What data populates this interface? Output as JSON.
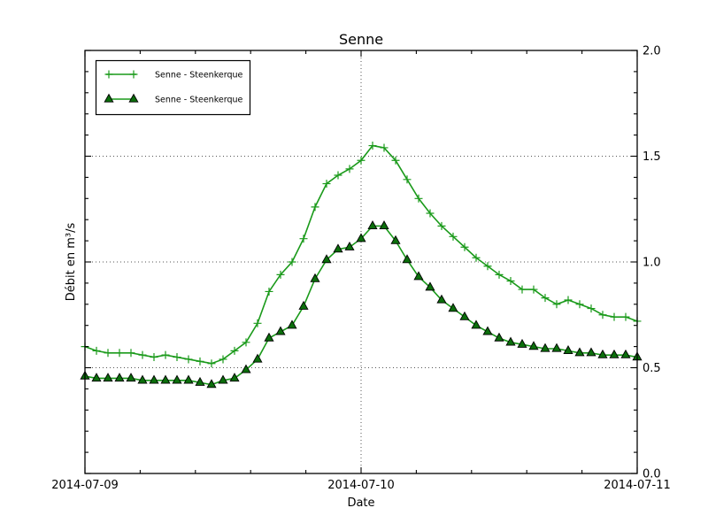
{
  "figure": {
    "background_color": "#ffffff",
    "frame_color": "#000000"
  },
  "chart_data": {
    "type": "line",
    "title": "Senne",
    "xlabel": "Date",
    "ylabel": "Débit en m³/s",
    "x_tick_labels": [
      "2014-07-09",
      "2014-07-10",
      "2014-07-11"
    ],
    "y_tick_labels": [
      "0.0",
      "0.5",
      "1.0",
      "1.5",
      "2.0"
    ],
    "y_ticks": [
      0.0,
      0.5,
      1.0,
      1.5,
      2.0
    ],
    "ylim": [
      0.0,
      2.0
    ],
    "x_hours_range": [
      0,
      48
    ],
    "x_step_hours": 1,
    "grid": {
      "style": "dotted",
      "y_values": [
        0.5,
        1.0,
        1.5
      ],
      "x_hours": [
        24
      ]
    },
    "legend": {
      "position": "upper-left",
      "entries": [
        "Senne - Steenkerque",
        "Senne - Steenkerque"
      ]
    },
    "series": [
      {
        "name": "Senne - Steenkerque",
        "marker": "plus",
        "color": "#1a9a1a",
        "values": [
          0.6,
          0.58,
          0.57,
          0.57,
          0.57,
          0.56,
          0.55,
          0.56,
          0.55,
          0.54,
          0.53,
          0.52,
          0.54,
          0.58,
          0.62,
          0.71,
          0.86,
          0.94,
          1.0,
          1.11,
          1.26,
          1.37,
          1.41,
          1.44,
          1.48,
          1.55,
          1.54,
          1.48,
          1.39,
          1.3,
          1.23,
          1.17,
          1.12,
          1.07,
          1.02,
          0.98,
          0.94,
          0.91,
          0.87,
          0.87,
          0.83,
          0.8,
          0.82,
          0.8,
          0.78,
          0.75,
          0.74,
          0.74,
          0.72
        ]
      },
      {
        "name": "Senne - Steenkerque",
        "marker": "triangle",
        "color": "#1a9a1a",
        "marker_fill": "#0b6e0b",
        "marker_edge": "#000000",
        "values": [
          0.46,
          0.45,
          0.45,
          0.45,
          0.45,
          0.44,
          0.44,
          0.44,
          0.44,
          0.44,
          0.43,
          0.42,
          0.44,
          0.45,
          0.49,
          0.54,
          0.64,
          0.67,
          0.7,
          0.79,
          0.92,
          1.01,
          1.06,
          1.07,
          1.11,
          1.17,
          1.17,
          1.1,
          1.01,
          0.93,
          0.88,
          0.82,
          0.78,
          0.74,
          0.7,
          0.67,
          0.64,
          0.62,
          0.61,
          0.6,
          0.59,
          0.59,
          0.58,
          0.57,
          0.57,
          0.56,
          0.56,
          0.56,
          0.55
        ]
      }
    ]
  }
}
